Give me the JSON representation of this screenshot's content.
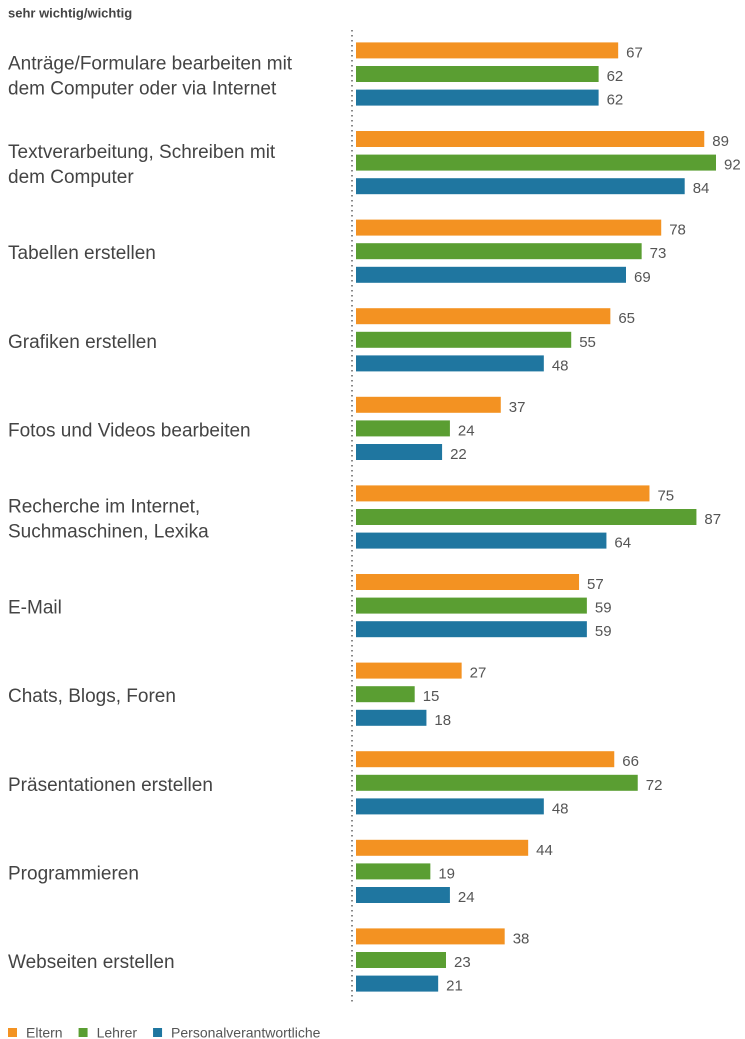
{
  "chart_data": {
    "type": "hbar",
    "subtitle": "sehr wichtig/wichtig",
    "categories": [
      "Anträge/Formulare bearbeiten mit\ndem Computer oder via Internet",
      "Textverarbeitung, Schreiben mit\ndem Computer",
      "Tabellen erstellen",
      "Grafiken erstellen",
      "Fotos und Videos bearbeiten",
      "Recherche im Internet,\nSuchmaschinen, Lexika",
      "E-Mail",
      "Chats, Blogs, Foren",
      "Präsentationen erstellen",
      "Programmieren",
      "Webseiten erstellen"
    ],
    "series": [
      {
        "name": "Eltern",
        "color": "#f39222",
        "values": [
          67,
          89,
          78,
          65,
          37,
          75,
          57,
          27,
          66,
          44,
          38
        ]
      },
      {
        "name": "Lehrer",
        "color": "#5a9e32",
        "values": [
          62,
          92,
          73,
          55,
          24,
          87,
          59,
          15,
          72,
          19,
          23
        ]
      },
      {
        "name": "Personalverantwortliche",
        "color": "#1f76a0",
        "values": [
          62,
          84,
          69,
          48,
          22,
          64,
          59,
          18,
          48,
          24,
          21
        ]
      }
    ]
  }
}
